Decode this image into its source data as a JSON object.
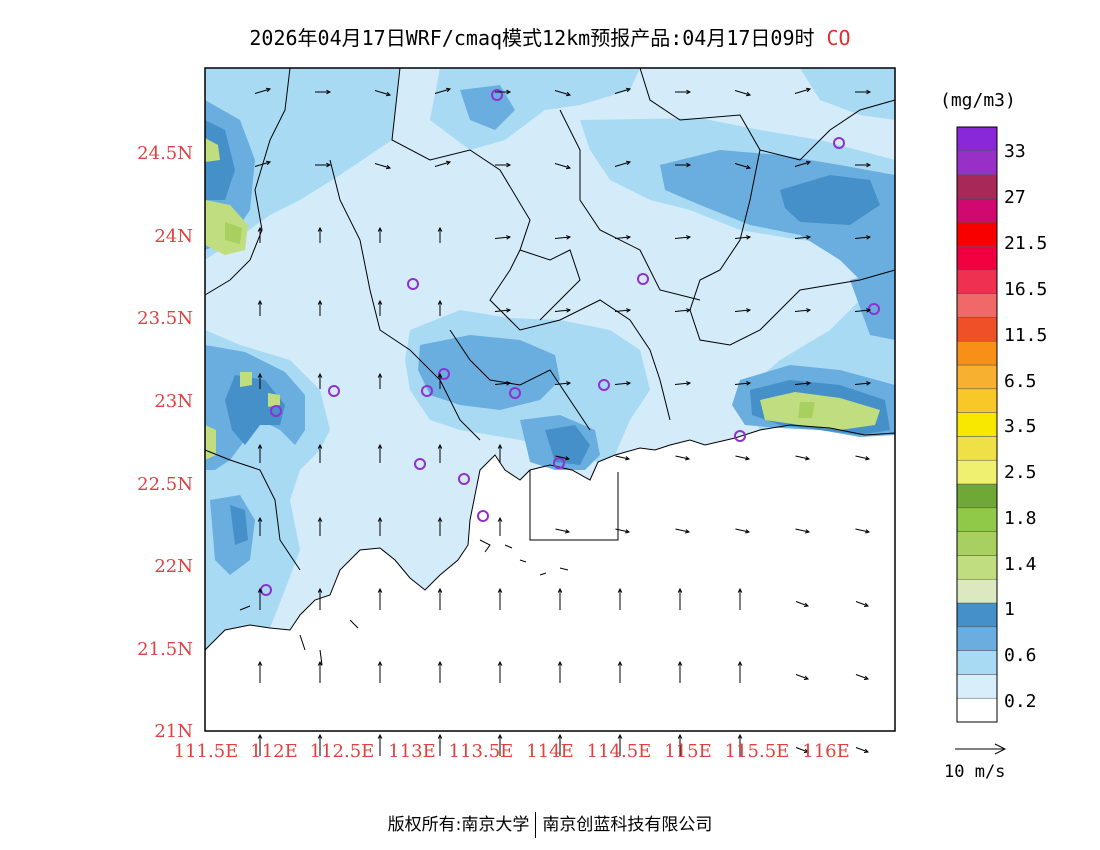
{
  "title": "2026年04月17日WRF/cmaq模式12km预报产品:04月17日09时",
  "species": "CO",
  "colors": {
    "axis_label": "#e04040",
    "station_marker": "#9030d0",
    "land": "#d4ecf9"
  },
  "lat_ticks": [
    "24.5N",
    "24N",
    "23.5N",
    "23N",
    "22.5N",
    "22N",
    "21.5N",
    "21N"
  ],
  "lon_ticks": [
    "111.5E",
    "112E",
    "112.5E",
    "113E",
    "113.5E",
    "114E",
    "114.5E",
    "115E",
    "115.5E",
    "116E"
  ],
  "colorbar": {
    "unit": "(mg/m3)",
    "colors": [
      "#ffffff",
      "#d8eefa",
      "#a8daf4",
      "#6aaee0",
      "#4590c8",
      "#dce8c0",
      "#c0de80",
      "#a8d060",
      "#90c848",
      "#70a838",
      "#f0f070",
      "#f0e048",
      "#f8e800",
      "#f8c828",
      "#f8b030",
      "#f89018",
      "#f05028",
      "#f06868",
      "#f03050",
      "#f00040",
      "#f80000",
      "#d00870",
      "#a82858",
      "#9830c8",
      "#8828d8"
    ],
    "labels": [
      "0.2",
      "0.6",
      "1",
      "1.4",
      "1.8",
      "2.5",
      "3.5",
      "6.5",
      "11.5",
      "16.5",
      "21.5",
      "27",
      "33"
    ]
  },
  "vector_legend": "10 m/s",
  "footer": {
    "left": "版权所有:南京大学",
    "right": "南京创蓝科技有限公司"
  }
}
